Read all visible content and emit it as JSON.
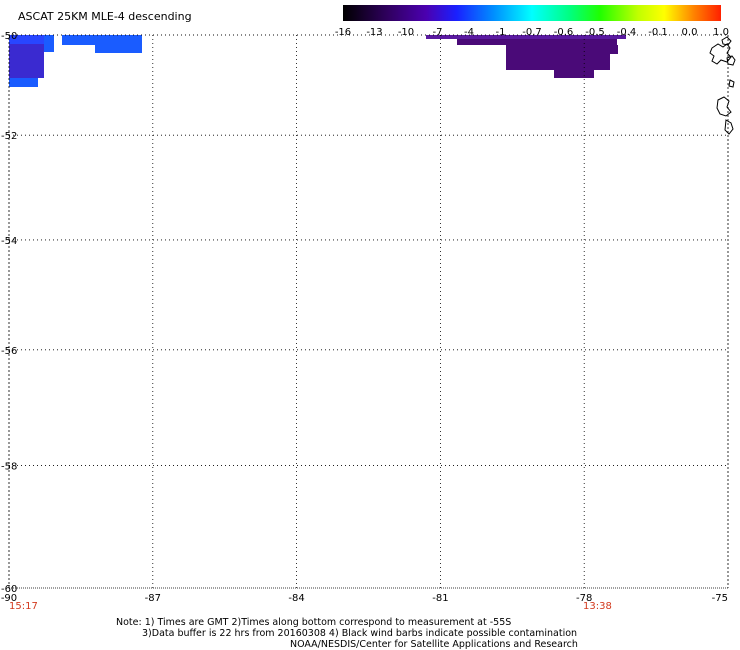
{
  "title": "ASCAT 25KM MLE-4 descending",
  "colorbar": {
    "labels": [
      "-16",
      "-13",
      "-10",
      "-7",
      "-4",
      "-1",
      "-0.7",
      "-0.6",
      "-0.5",
      "-0.4",
      "-0.1",
      "0.0",
      "1.0"
    ],
    "colors": [
      "#000000",
      "#2a0050",
      "#4b0082",
      "#3a00d0",
      "#0040ff",
      "#0090ff",
      "#00ffff",
      "#00ff80",
      "#00ff00",
      "#a0ff00",
      "#ffff00",
      "#ff8000",
      "#ff0000"
    ]
  },
  "map": {
    "lat_labels": [
      "-50",
      "-52",
      "-54",
      "-56",
      "-58",
      "-60"
    ],
    "lon_labels": [
      "-90",
      "-87",
      "-84",
      "-81",
      "-78",
      "-75"
    ],
    "time_labels": [
      {
        "text": "15:17",
        "lon": "-90"
      },
      {
        "text": "13:38",
        "lon": "-78"
      }
    ],
    "data_colors": {
      "blue": "#1a5cff",
      "deep_blue": "#2846ff",
      "purple": "#5a1aa0",
      "dark_purple": "#4a0a78"
    }
  },
  "notes": {
    "line1": "Note: 1) Times are GMT 2)Times along bottom correspond to measurement at -55S",
    "line2": "3)Data buffer is 22 hrs from 20160308 4) Black wind barbs indicate possible contamination",
    "line3": "NOAA/NESDIS/Center for Satellite Applications and Research"
  }
}
